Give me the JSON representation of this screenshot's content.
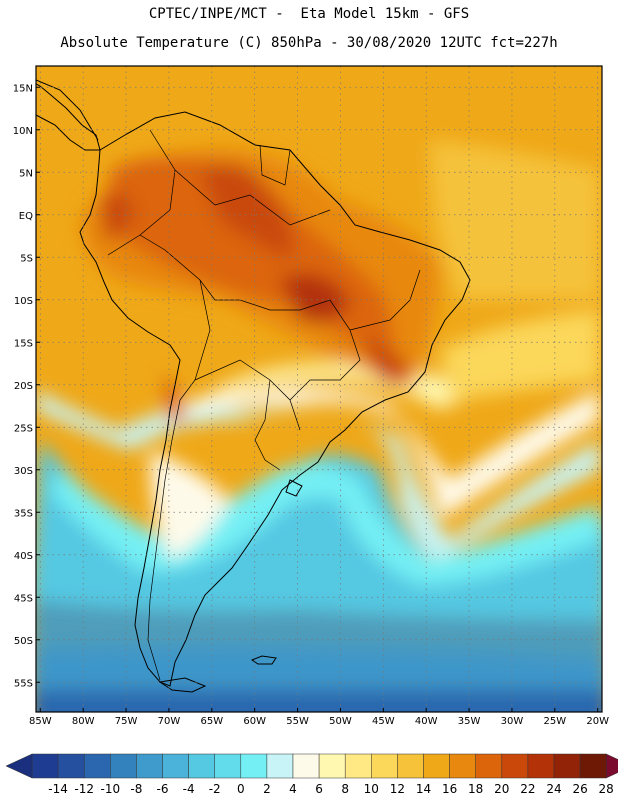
{
  "header": {
    "line1": "CPTEC/INPE/MCT -  Eta Model 15km - GFS",
    "line2": "Absolute Temperature (C) 850hPa - 30/08/2020 12UTC fct=227h"
  },
  "map": {
    "lon_range": [
      -85.5,
      -19.5
    ],
    "lat_range": [
      -58.5,
      17.5
    ],
    "lat_ticks": [
      {
        "value": 15,
        "label": "15N"
      },
      {
        "value": 10,
        "label": "10N"
      },
      {
        "value": 5,
        "label": "5N"
      },
      {
        "value": 0,
        "label": "EQ"
      },
      {
        "value": -5,
        "label": "5S"
      },
      {
        "value": -10,
        "label": "10S"
      },
      {
        "value": -15,
        "label": "15S"
      },
      {
        "value": -20,
        "label": "20S"
      },
      {
        "value": -25,
        "label": "25S"
      },
      {
        "value": -30,
        "label": "30S"
      },
      {
        "value": -35,
        "label": "35S"
      },
      {
        "value": -40,
        "label": "40S"
      },
      {
        "value": -45,
        "label": "45S"
      },
      {
        "value": -50,
        "label": "50S"
      },
      {
        "value": -55,
        "label": "55S"
      }
    ],
    "lon_ticks": [
      {
        "value": -85,
        "label": "85W"
      },
      {
        "value": -80,
        "label": "80W"
      },
      {
        "value": -75,
        "label": "75W"
      },
      {
        "value": -70,
        "label": "70W"
      },
      {
        "value": -65,
        "label": "65W"
      },
      {
        "value": -60,
        "label": "60W"
      },
      {
        "value": -55,
        "label": "55W"
      },
      {
        "value": -50,
        "label": "50W"
      },
      {
        "value": -45,
        "label": "45W"
      },
      {
        "value": -40,
        "label": "40W"
      },
      {
        "value": -35,
        "label": "35W"
      },
      {
        "value": -30,
        "label": "30W"
      },
      {
        "value": -25,
        "label": "25W"
      },
      {
        "value": -20,
        "label": "20W"
      }
    ],
    "grid": "dotted",
    "coastline_color": "#000000"
  },
  "colorbar": {
    "labels": [
      "-14",
      "-12",
      "-10",
      "-8",
      "-6",
      "-4",
      "-2",
      "0",
      "2",
      "4",
      "6",
      "8",
      "10",
      "12",
      "14",
      "16",
      "18",
      "20",
      "22",
      "24",
      "26",
      "28"
    ],
    "colors": [
      "#1f3c93",
      "#2550a0",
      "#2b67ae",
      "#3382bd",
      "#3f9bcc",
      "#4bb3d9",
      "#55c8e2",
      "#62dbea",
      "#74f0f4",
      "#c8f4f8",
      "#fefaea",
      "#fff8b0",
      "#ffe985",
      "#fbd75a",
      "#f5c23a",
      "#efa818",
      "#e8880e",
      "#dc650b",
      "#c9480a",
      "#b33208",
      "#922307",
      "#6e1905"
    ],
    "underflow_color": "#1a2f7e",
    "overflow_color": "#7a0a2e"
  }
}
